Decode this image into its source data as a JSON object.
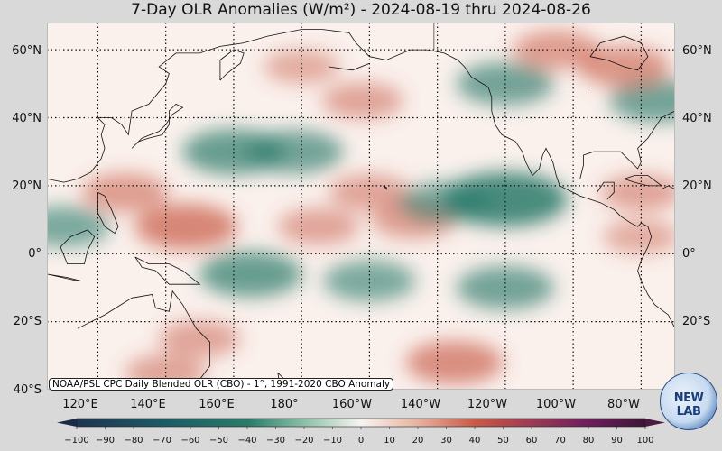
{
  "title": "7-Day OLR Anomalies (W/m²) - 2024-08-19 thru 2024-08-26",
  "lat_labels": [
    "60°N",
    "40°N",
    "20°N",
    "0°",
    "20°S",
    "40°S"
  ],
  "lon_labels": [
    "120°E",
    "140°E",
    "160°E",
    "180°",
    "160°W",
    "140°W",
    "120°W",
    "100°W",
    "80°W"
  ],
  "source_note": "NOAA/PSL CPC Daily Blended OLR (CBO) - 1°, 1991-2020 CBO Anomaly",
  "colorbar": {
    "ticks": [
      "−100",
      "−90",
      "−80",
      "−70",
      "−60",
      "−50",
      "−40",
      "−30",
      "−20",
      "−10",
      "0",
      "10",
      "20",
      "30",
      "40",
      "50",
      "60",
      "70",
      "80",
      "90",
      "100"
    ],
    "negative_color": "#2a7a6a",
    "positive_color": "#c85a45",
    "extreme_negative_color": "#1b2a4a",
    "extreme_positive_color": "#4a1a40"
  },
  "logo": {
    "text": "NEW LAB"
  },
  "map_extent": {
    "lon_min": 105,
    "lon_max": 290,
    "lat_min": -40,
    "lat_max": 68
  },
  "anomaly_centers": [
    {
      "lon": 146,
      "lat": 8,
      "value": 45
    },
    {
      "lon": 128,
      "lat": 18,
      "value": 30
    },
    {
      "lon": 200,
      "lat": 18,
      "value": 25
    },
    {
      "lon": 213,
      "lat": 10,
      "value": 28
    },
    {
      "lon": 240,
      "lat": 16,
      "value": -65
    },
    {
      "lon": 222,
      "lat": 15,
      "value": -35
    },
    {
      "lon": 160,
      "lat": 30,
      "value": -45
    },
    {
      "lon": 178,
      "lat": 30,
      "value": -40
    },
    {
      "lon": 165,
      "lat": -6,
      "value": -45
    },
    {
      "lon": 200,
      "lat": -8,
      "value": -35
    },
    {
      "lon": 240,
      "lat": -10,
      "value": -40
    },
    {
      "lon": 110,
      "lat": 8,
      "value": -35
    },
    {
      "lon": 240,
      "lat": 50,
      "value": -40
    },
    {
      "lon": 285,
      "lat": 45,
      "value": -40
    },
    {
      "lon": 280,
      "lat": 18,
      "value": 25
    },
    {
      "lon": 275,
      "lat": 55,
      "value": 35
    },
    {
      "lon": 255,
      "lat": 60,
      "value": 30
    },
    {
      "lon": 198,
      "lat": 45,
      "value": 25
    },
    {
      "lon": 225,
      "lat": -32,
      "value": 40
    },
    {
      "lon": 150,
      "lat": -25,
      "value": 25
    },
    {
      "lon": 140,
      "lat": -35,
      "value": 25
    },
    {
      "lon": 185,
      "lat": 8,
      "value": 25
    },
    {
      "lon": 280,
      "lat": 5,
      "value": 20
    },
    {
      "lon": 180,
      "lat": 55,
      "value": 20
    }
  ]
}
